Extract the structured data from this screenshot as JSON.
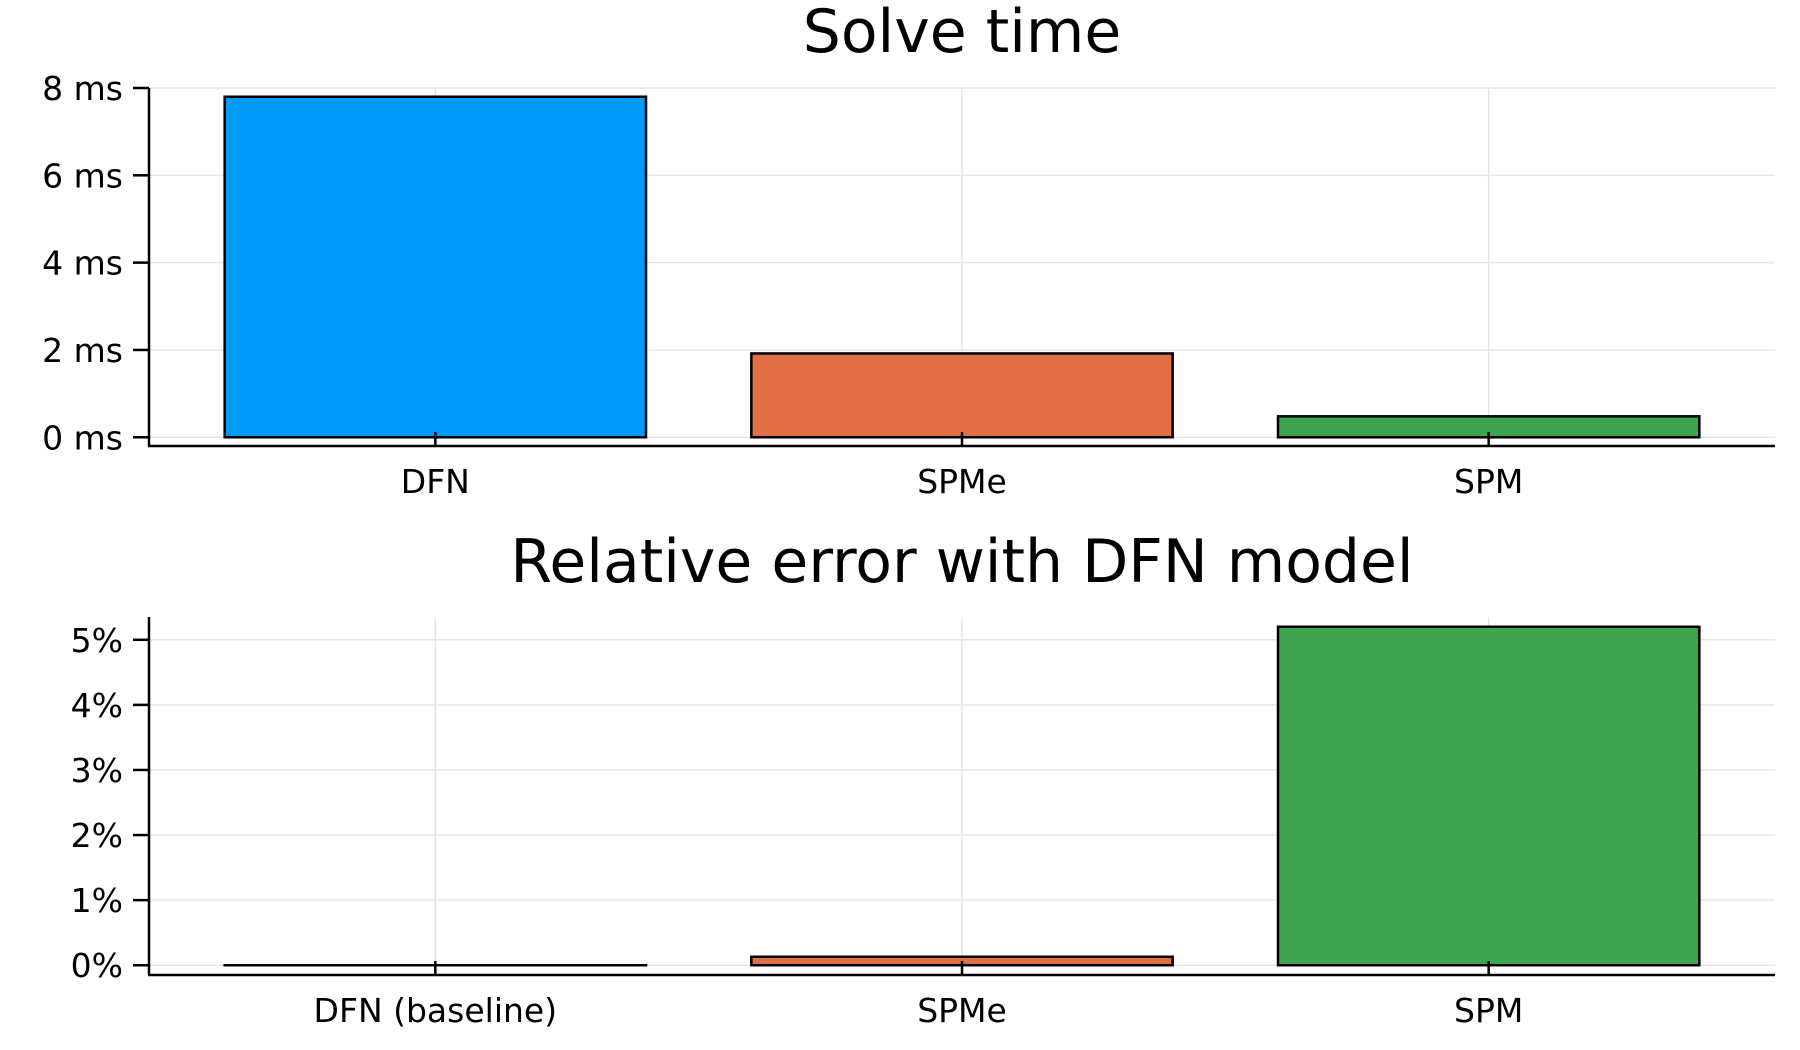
{
  "chart_data": [
    {
      "type": "bar",
      "title": "Solve time",
      "categories": [
        "DFN",
        "SPMe",
        "SPM"
      ],
      "values": [
        7.8,
        1.92,
        0.48
      ],
      "unit": "ms",
      "yticks": [
        0,
        2,
        4,
        6,
        8
      ],
      "ytick_labels": [
        "0 ms",
        "2 ms",
        "4 ms",
        "6 ms",
        "8 ms"
      ],
      "ylim": [
        -0.2,
        8.0
      ],
      "colors": [
        "#009af9",
        "#e26f46",
        "#3ea44e"
      ],
      "grid": true,
      "legend": "none"
    },
    {
      "type": "bar",
      "title": "Relative error with DFN model",
      "categories": [
        "DFN (baseline)",
        "SPMe",
        "SPM"
      ],
      "values": [
        0.0,
        0.13,
        5.2
      ],
      "unit": "%",
      "yticks": [
        0,
        1,
        2,
        3,
        4,
        5
      ],
      "ytick_labels": [
        "0%",
        "1%",
        "2%",
        "3%",
        "4%",
        "5%"
      ],
      "ylim": [
        -0.15,
        5.35
      ],
      "colors": [
        "#009af9",
        "#e26f46",
        "#3ea44e"
      ],
      "grid": true,
      "legend": "none"
    }
  ]
}
